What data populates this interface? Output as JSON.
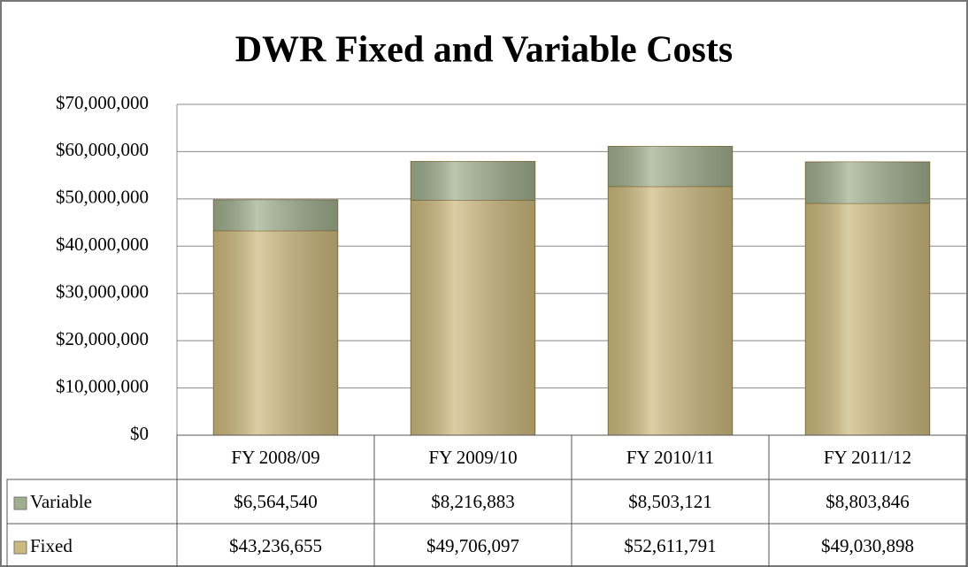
{
  "chart_data": {
    "type": "bar",
    "stacked": true,
    "title": "DWR Fixed and Variable Costs",
    "categories": [
      "FY 2008/09",
      "FY 2009/10",
      "FY 2010/11",
      "FY 2011/12"
    ],
    "series": [
      {
        "name": "Variable",
        "color": "#9fae8d",
        "values": [
          6564540,
          8216883,
          8503121,
          8803846
        ],
        "value_labels": [
          "$6,564,540",
          "$8,216,883",
          "$8,503,121",
          "$8,803,846"
        ]
      },
      {
        "name": "Fixed",
        "color": "#cdb97d",
        "values": [
          43236655,
          49706097,
          52611791,
          49030898
        ],
        "value_labels": [
          "$43,236,655",
          "$49,706,097",
          "$52,611,791",
          "$49,030,898"
        ]
      }
    ],
    "ylim": [
      0,
      70000000
    ],
    "yticks": [
      {
        "value": 0,
        "label": "$0"
      },
      {
        "value": 10000000,
        "label": "$10,000,000"
      },
      {
        "value": 20000000,
        "label": "$20,000,000"
      },
      {
        "value": 30000000,
        "label": "$30,000,000"
      },
      {
        "value": 40000000,
        "label": "$40,000,000"
      },
      {
        "value": 50000000,
        "label": "$50,000,000"
      },
      {
        "value": 60000000,
        "label": "$60,000,000"
      },
      {
        "value": 70000000,
        "label": "$70,000,000"
      }
    ],
    "grid": true
  }
}
